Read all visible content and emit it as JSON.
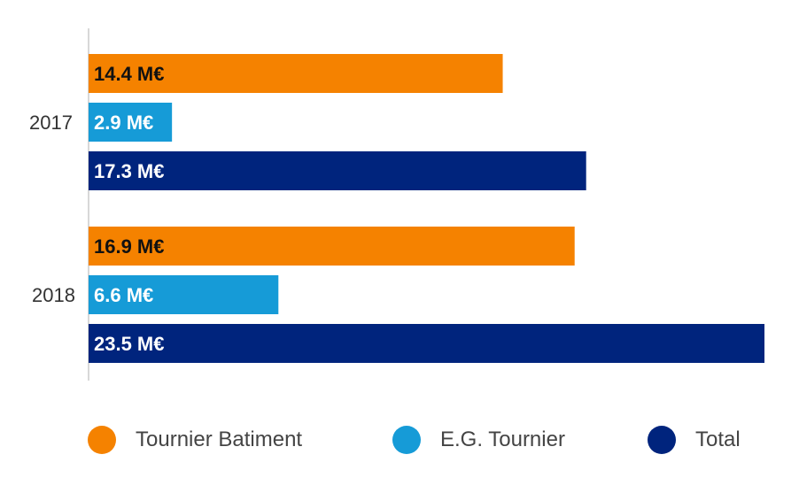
{
  "chart_data": {
    "type": "bar",
    "orientation": "horizontal",
    "categories": [
      "2017",
      "2018"
    ],
    "series": [
      {
        "name": "Tournier Batiment",
        "color": "#F58200",
        "label_color": "#111111",
        "values": [
          14.4,
          16.9
        ],
        "labels": [
          "14.4 M€",
          "16.9 M€"
        ]
      },
      {
        "name": "E.G. Tournier",
        "color": "#169BD7",
        "label_color": "#ffffff",
        "values": [
          2.9,
          6.6
        ],
        "labels": [
          "2.9 M€",
          "6.6 M€"
        ]
      },
      {
        "name": "Total",
        "color": "#00247D",
        "label_color": "#ffffff",
        "values": [
          17.3,
          23.5
        ],
        "labels": [
          "17.3 M€",
          "23.5 M€"
        ]
      }
    ],
    "xlim": [
      0,
      23.5
    ],
    "unit": "M€",
    "grid": false,
    "legend_position": "bottom"
  }
}
